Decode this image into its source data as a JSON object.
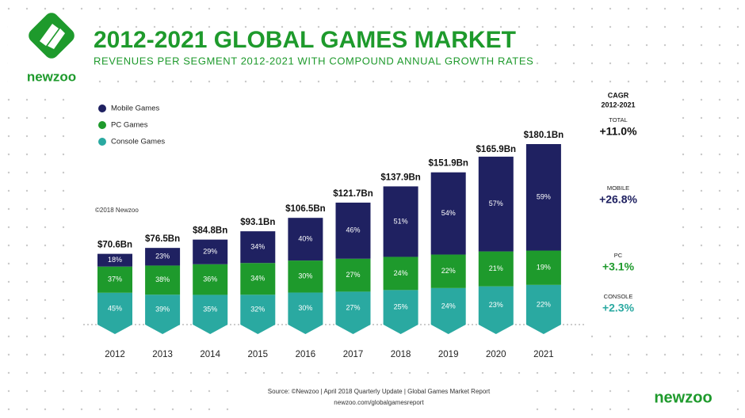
{
  "chart_data": {
    "type": "bar",
    "stacked": true,
    "brand": "newzoo",
    "title": "2012-2021 GLOBAL GAMES MARKET",
    "subtitle": "REVENUES PER SEGMENT 2012-2021 WITH COMPOUND ANNUAL GROWTH RATES",
    "copyright": "©2018 Newzoo",
    "source": "Source: ©Newzoo | April 2018 Quarterly Update | Global Games Market Report",
    "url": "newzoo.com/globalgamesreport",
    "categories": [
      "2012",
      "2013",
      "2014",
      "2015",
      "2016",
      "2017",
      "2018",
      "2019",
      "2020",
      "2021"
    ],
    "totals": {
      "values": [
        70.6,
        76.5,
        84.8,
        93.1,
        106.5,
        121.7,
        137.9,
        151.9,
        165.9,
        180.1
      ],
      "value_labels": [
        "$70.6Bn",
        "$76.5Bn",
        "$84.8Bn",
        "$93.1Bn",
        "$106.5Bn",
        "$121.7Bn",
        "$137.9Bn",
        "$151.9Bn",
        "$165.9Bn",
        "$180.1Bn"
      ]
    },
    "series": [
      {
        "name": "Console Games",
        "color": "#2aa9a1",
        "values": [
          45,
          39,
          35,
          32,
          30,
          27,
          25,
          24,
          23,
          22
        ],
        "value_labels": [
          "45%",
          "39%",
          "35%",
          "32%",
          "30%",
          "27%",
          "25%",
          "24%",
          "23%",
          "22%"
        ]
      },
      {
        "name": "PC Games",
        "color": "#1e9a2c",
        "values": [
          37,
          38,
          36,
          34,
          30,
          27,
          24,
          22,
          21,
          19
        ],
        "value_labels": [
          "37%",
          "38%",
          "36%",
          "34%",
          "30%",
          "27%",
          "24%",
          "22%",
          "21%",
          "19%"
        ]
      },
      {
        "name": "Mobile Games",
        "color": "#1f2161",
        "values": [
          18,
          23,
          29,
          34,
          40,
          46,
          51,
          54,
          57,
          59
        ],
        "value_labels": [
          "18%",
          "23%",
          "29%",
          "34%",
          "40%",
          "46%",
          "51%",
          "54%",
          "57%",
          "59%"
        ]
      }
    ],
    "cagr": {
      "title": "CAGR",
      "period": "2012-2021",
      "items": [
        {
          "label": "TOTAL",
          "value": "+11.0%",
          "color": "#111111"
        },
        {
          "label": "MOBILE",
          "value": "+26.8%",
          "color": "#1f2161"
        },
        {
          "label": "PC",
          "value": "+3.1%",
          "color": "#1e9a2c"
        },
        {
          "label": "CONSOLE",
          "value": "+2.3%",
          "color": "#2aa9a1"
        }
      ]
    }
  }
}
